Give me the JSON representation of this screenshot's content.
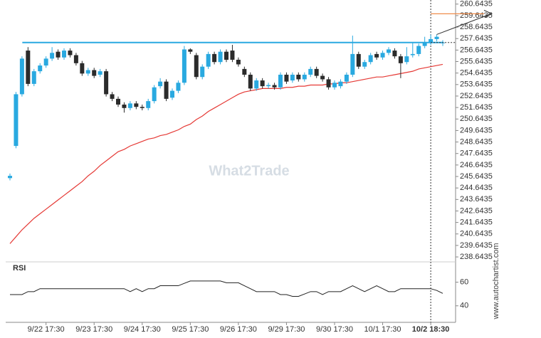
{
  "chart_data": {
    "type": "candlestick",
    "categories": [
      null,
      null,
      null,
      null,
      null,
      null,
      "9/22 17:30",
      null,
      null,
      null,
      null,
      null,
      null,
      null,
      "9/23 17:30",
      null,
      null,
      null,
      null,
      null,
      null,
      null,
      "9/24 17:30",
      null,
      null,
      null,
      null,
      null,
      null,
      null,
      "9/25 17:30",
      null,
      null,
      null,
      null,
      null,
      null,
      null,
      "9/26 17:30",
      null,
      null,
      null,
      null,
      null,
      null,
      null,
      "9/29 17:30",
      null,
      null,
      null,
      null,
      null,
      null,
      null,
      "9/30 17:30",
      null,
      null,
      null,
      null,
      null,
      null,
      null,
      "10/1 17:30",
      null,
      null,
      null,
      null,
      null,
      null,
      null,
      "10/2 18:30",
      null,
      null
    ],
    "open": [
      245.5,
      248.3,
      252.8,
      256.6,
      253.7,
      254.8,
      255.3,
      255.9,
      256.5,
      256.0,
      256.6,
      256.2,
      255.5,
      254.6,
      254.9,
      254.5,
      254.8,
      252.8,
      252.4,
      251.9,
      251.6,
      252.0,
      251.7,
      251.6,
      252.2,
      253.5,
      253.9,
      252.5,
      253.1,
      253.8,
      256.7,
      256.2,
      254.3,
      255.2,
      256.3,
      255.6,
      256.5,
      256.6,
      255.8,
      255.0,
      254.5,
      253.3,
      254.0,
      253.5,
      253.6,
      253.4,
      254.5,
      254.0,
      254.5,
      254.1,
      254.5,
      255.0,
      254.4,
      254.1,
      253.4,
      253.5,
      253.9,
      254.5,
      256.3,
      255.2,
      255.6,
      256.3,
      256.0,
      256.4,
      256.6,
      256.1,
      255.6,
      256.2,
      256.3,
      257.0,
      257.3,
      257.6,
      257.3
    ],
    "high": [
      245.9,
      253.0,
      256.1,
      256.9,
      255.0,
      255.5,
      256.1,
      256.9,
      256.7,
      256.8,
      256.8,
      256.4,
      255.7,
      255.1,
      255.1,
      255.0,
      255.0,
      253.0,
      252.6,
      252.1,
      252.2,
      252.2,
      251.9,
      252.4,
      253.6,
      254.2,
      254.1,
      253.3,
      254.0,
      257.0,
      256.8,
      256.4,
      255.4,
      256.5,
      256.5,
      256.7,
      256.7,
      257.1,
      256.0,
      255.2,
      254.7,
      254.2,
      254.2,
      253.8,
      253.8,
      254.7,
      254.7,
      254.7,
      254.7,
      254.7,
      255.2,
      255.2,
      254.6,
      254.3,
      254.0,
      254.1,
      254.7,
      257.9,
      256.5,
      255.8,
      256.4,
      256.5,
      256.6,
      256.9,
      256.8,
      256.3,
      256.9,
      257.3,
      257.2,
      257.8,
      258.0,
      258.0,
      257.5
    ],
    "low": [
      245.3,
      248.1,
      252.6,
      253.5,
      253.5,
      254.6,
      255.1,
      255.7,
      255.8,
      255.8,
      256.0,
      255.3,
      254.4,
      254.4,
      254.2,
      254.3,
      252.6,
      252.2,
      251.7,
      251.2,
      251.4,
      251.5,
      251.4,
      251.4,
      252.0,
      253.3,
      252.2,
      252.3,
      252.9,
      253.6,
      256.3,
      254.1,
      254.1,
      255.0,
      255.4,
      255.4,
      255.6,
      255.6,
      255.2,
      254.3,
      253.1,
      253.1,
      253.3,
      253.3,
      253.2,
      253.2,
      253.7,
      253.8,
      253.9,
      253.9,
      254.3,
      254.2,
      253.9,
      253.2,
      253.2,
      253.3,
      253.7,
      254.3,
      255.0,
      255.0,
      255.4,
      255.8,
      255.8,
      256.2,
      255.9,
      254.2,
      255.4,
      256.0,
      256.1,
      256.8,
      257.1,
      257.4,
      257.0
    ],
    "close": [
      245.7,
      252.8,
      255.9,
      253.7,
      254.8,
      255.3,
      255.9,
      256.4,
      256.0,
      256.6,
      256.2,
      255.5,
      254.6,
      254.9,
      254.4,
      254.8,
      252.8,
      252.4,
      251.9,
      251.6,
      252.0,
      251.7,
      251.6,
      252.2,
      253.4,
      253.9,
      252.4,
      253.1,
      253.8,
      256.7,
      256.5,
      254.3,
      255.2,
      256.3,
      255.6,
      256.5,
      255.8,
      255.8,
      255.4,
      254.5,
      253.3,
      254.0,
      253.5,
      253.6,
      253.4,
      254.5,
      253.9,
      254.5,
      254.1,
      254.5,
      255.0,
      254.4,
      254.1,
      253.4,
      253.8,
      253.9,
      254.5,
      256.3,
      255.2,
      255.6,
      256.2,
      256.0,
      256.4,
      256.7,
      256.1,
      255.5,
      256.1,
      256.3,
      257.0,
      257.3,
      257.6,
      257.8,
      257.3
    ],
    "up_color": "#29a9e0",
    "down_color": "#2b2b2b",
    "ylim": [
      238.4,
      261.0
    ],
    "yticks": [
      238.6435,
      239.6435,
      240.6435,
      241.6435,
      242.6435,
      243.6435,
      244.6435,
      245.6435,
      246.6435,
      247.6435,
      248.6435,
      249.6435,
      250.6435,
      251.6435,
      252.6435,
      253.6435,
      254.6435,
      255.6435,
      256.6435,
      257.6435,
      258.6435,
      259.6435,
      260.6435
    ],
    "moving_average": {
      "color": "#e53935",
      "values": [
        239.8,
        240.4,
        241.0,
        241.5,
        242.0,
        242.4,
        242.8,
        243.2,
        243.6,
        244.0,
        244.4,
        244.8,
        245.2,
        245.7,
        246.1,
        246.6,
        247.0,
        247.4,
        247.8,
        248.0,
        248.3,
        248.5,
        248.7,
        248.9,
        249.0,
        249.2,
        249.3,
        249.5,
        249.7,
        250.0,
        250.2,
        250.6,
        250.9,
        251.3,
        251.6,
        251.9,
        252.2,
        252.5,
        252.8,
        253.0,
        253.1,
        253.2,
        253.3,
        253.3,
        253.3,
        253.3,
        253.4,
        253.4,
        253.5,
        253.5,
        253.6,
        253.6,
        253.6,
        253.7,
        253.7,
        253.8,
        253.8,
        253.9,
        254.0,
        254.1,
        254.2,
        254.3,
        254.3,
        254.4,
        254.5,
        254.6,
        254.7,
        254.8,
        255.0,
        255.1,
        255.2,
        255.3,
        255.4
      ]
    },
    "resistance": {
      "value": 257.3,
      "color": "#29a9e0"
    },
    "forecast": {
      "start": 258.0,
      "target": 259.8,
      "color": "#f08c4a"
    },
    "rsi": {
      "title": "RSI",
      "color": "#222",
      "ylim": [
        26,
        76
      ],
      "yticks": [
        40,
        60
      ],
      "values": [
        49.5,
        49.5,
        49.5,
        52,
        52,
        54.5,
        54.5,
        54.5,
        54.5,
        54.5,
        54.5,
        54.5,
        54.5,
        54.5,
        54.5,
        54.5,
        54.5,
        54.5,
        54.5,
        54.5,
        52,
        54.5,
        52,
        54.5,
        54.5,
        57,
        57,
        57,
        57,
        59,
        61,
        61,
        61,
        61,
        61,
        61,
        59.5,
        59.5,
        59.5,
        57,
        54.5,
        52,
        52,
        52,
        52,
        49.5,
        49.5,
        48,
        48,
        50,
        52,
        52,
        49.5,
        52,
        52,
        52,
        54.5,
        57,
        54.5,
        52,
        54.5,
        57,
        54.5,
        52,
        52,
        54.5,
        54.5,
        54.5,
        54.5,
        54.5,
        54.5,
        53,
        50.5
      ]
    },
    "watermark": "What2Trade",
    "source": "www.autochartist.com"
  }
}
